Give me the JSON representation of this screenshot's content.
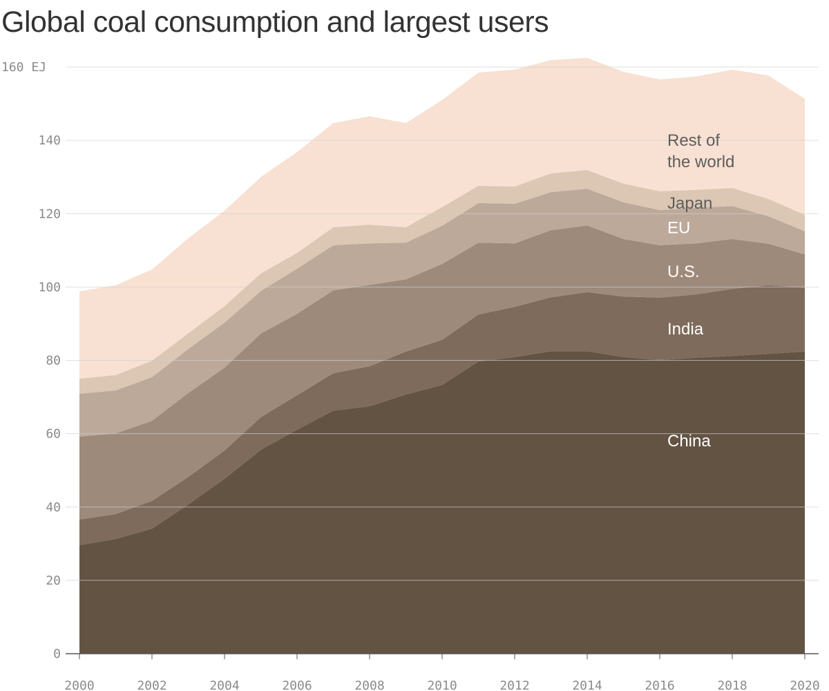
{
  "chart_data": {
    "type": "area",
    "stacked": true,
    "title": "Global coal consumption and largest users",
    "xlabel": "",
    "ylabel": "EJ",
    "ylim": [
      0,
      160
    ],
    "xlim": [
      2000,
      2020
    ],
    "grid": true,
    "y_ticks": [
      "0",
      "20",
      "40",
      "60",
      "80",
      "100",
      "120",
      "140",
      "160 EJ"
    ],
    "y_tick_values": [
      0,
      20,
      40,
      60,
      80,
      100,
      120,
      140,
      160
    ],
    "x_ticks": [
      "2000",
      "2002",
      "2004",
      "2006",
      "2008",
      "2010",
      "2012",
      "2014",
      "2016",
      "2018",
      "2020"
    ],
    "x_tick_values": [
      2000,
      2002,
      2004,
      2006,
      2008,
      2010,
      2012,
      2014,
      2016,
      2018,
      2020
    ],
    "x": [
      2000,
      2001,
      2002,
      2003,
      2004,
      2005,
      2006,
      2007,
      2008,
      2009,
      2010,
      2011,
      2012,
      2013,
      2014,
      2015,
      2016,
      2017,
      2018,
      2019,
      2020
    ],
    "series": [
      {
        "name": "China",
        "label": "China",
        "color": "#635343",
        "label_color": "#ffffff",
        "values": [
          29.6,
          31.3,
          34.1,
          40.7,
          47.7,
          55.6,
          61.1,
          66.3,
          67.5,
          70.7,
          73.3,
          79.7,
          80.9,
          82.5,
          82.5,
          80.9,
          80.1,
          80.7,
          81.2,
          81.8,
          82.4
        ]
      },
      {
        "name": "India",
        "label": "India",
        "color": "#7e6b5b",
        "label_color": "#ffffff",
        "values": [
          7.0,
          6.8,
          7.6,
          7.5,
          7.7,
          8.9,
          9.4,
          10.2,
          10.9,
          11.7,
          12.3,
          12.8,
          13.7,
          14.7,
          16.1,
          16.5,
          17.0,
          17.3,
          18.3,
          18.7,
          17.5
        ]
      },
      {
        "name": "U.S.",
        "label": "U.S.",
        "color": "#9e8a7b",
        "label_color": "#ffffff",
        "values": [
          22.6,
          22.0,
          21.8,
          22.9,
          22.6,
          22.8,
          22.2,
          22.6,
          22.2,
          19.7,
          20.7,
          19.6,
          17.3,
          18.3,
          18.2,
          15.7,
          14.3,
          13.9,
          13.6,
          11.3,
          9.0
        ]
      },
      {
        "name": "EU",
        "label": "EU",
        "color": "#bda99a",
        "label_color": "#ffffff",
        "values": [
          11.7,
          11.7,
          11.9,
          12.0,
          12.3,
          11.6,
          12.3,
          12.3,
          11.3,
          10.0,
          10.4,
          10.8,
          10.8,
          10.4,
          10.0,
          10.0,
          9.6,
          9.7,
          9.0,
          7.5,
          6.3
        ]
      },
      {
        "name": "Japan",
        "label": "Japan",
        "color": "#dcc6b4",
        "label_color": "#5d5d5d",
        "values": [
          4.1,
          4.2,
          4.5,
          4.3,
          4.5,
          4.8,
          4.3,
          4.9,
          5.1,
          4.2,
          5.1,
          4.7,
          4.7,
          5.1,
          5.1,
          5.1,
          5.1,
          4.9,
          4.9,
          4.7,
          4.5
        ]
      },
      {
        "name": "Rest of the world",
        "label": [
          "Rest of",
          "the world"
        ],
        "color": "#f8e1d2",
        "label_color": "#5d5d5d",
        "values": [
          23.8,
          24.5,
          24.9,
          25.9,
          26.0,
          26.3,
          27.5,
          28.4,
          29.6,
          28.4,
          29.2,
          30.9,
          31.9,
          30.9,
          30.6,
          30.5,
          30.5,
          30.9,
          32.3,
          33.7,
          31.6
        ]
      }
    ]
  }
}
